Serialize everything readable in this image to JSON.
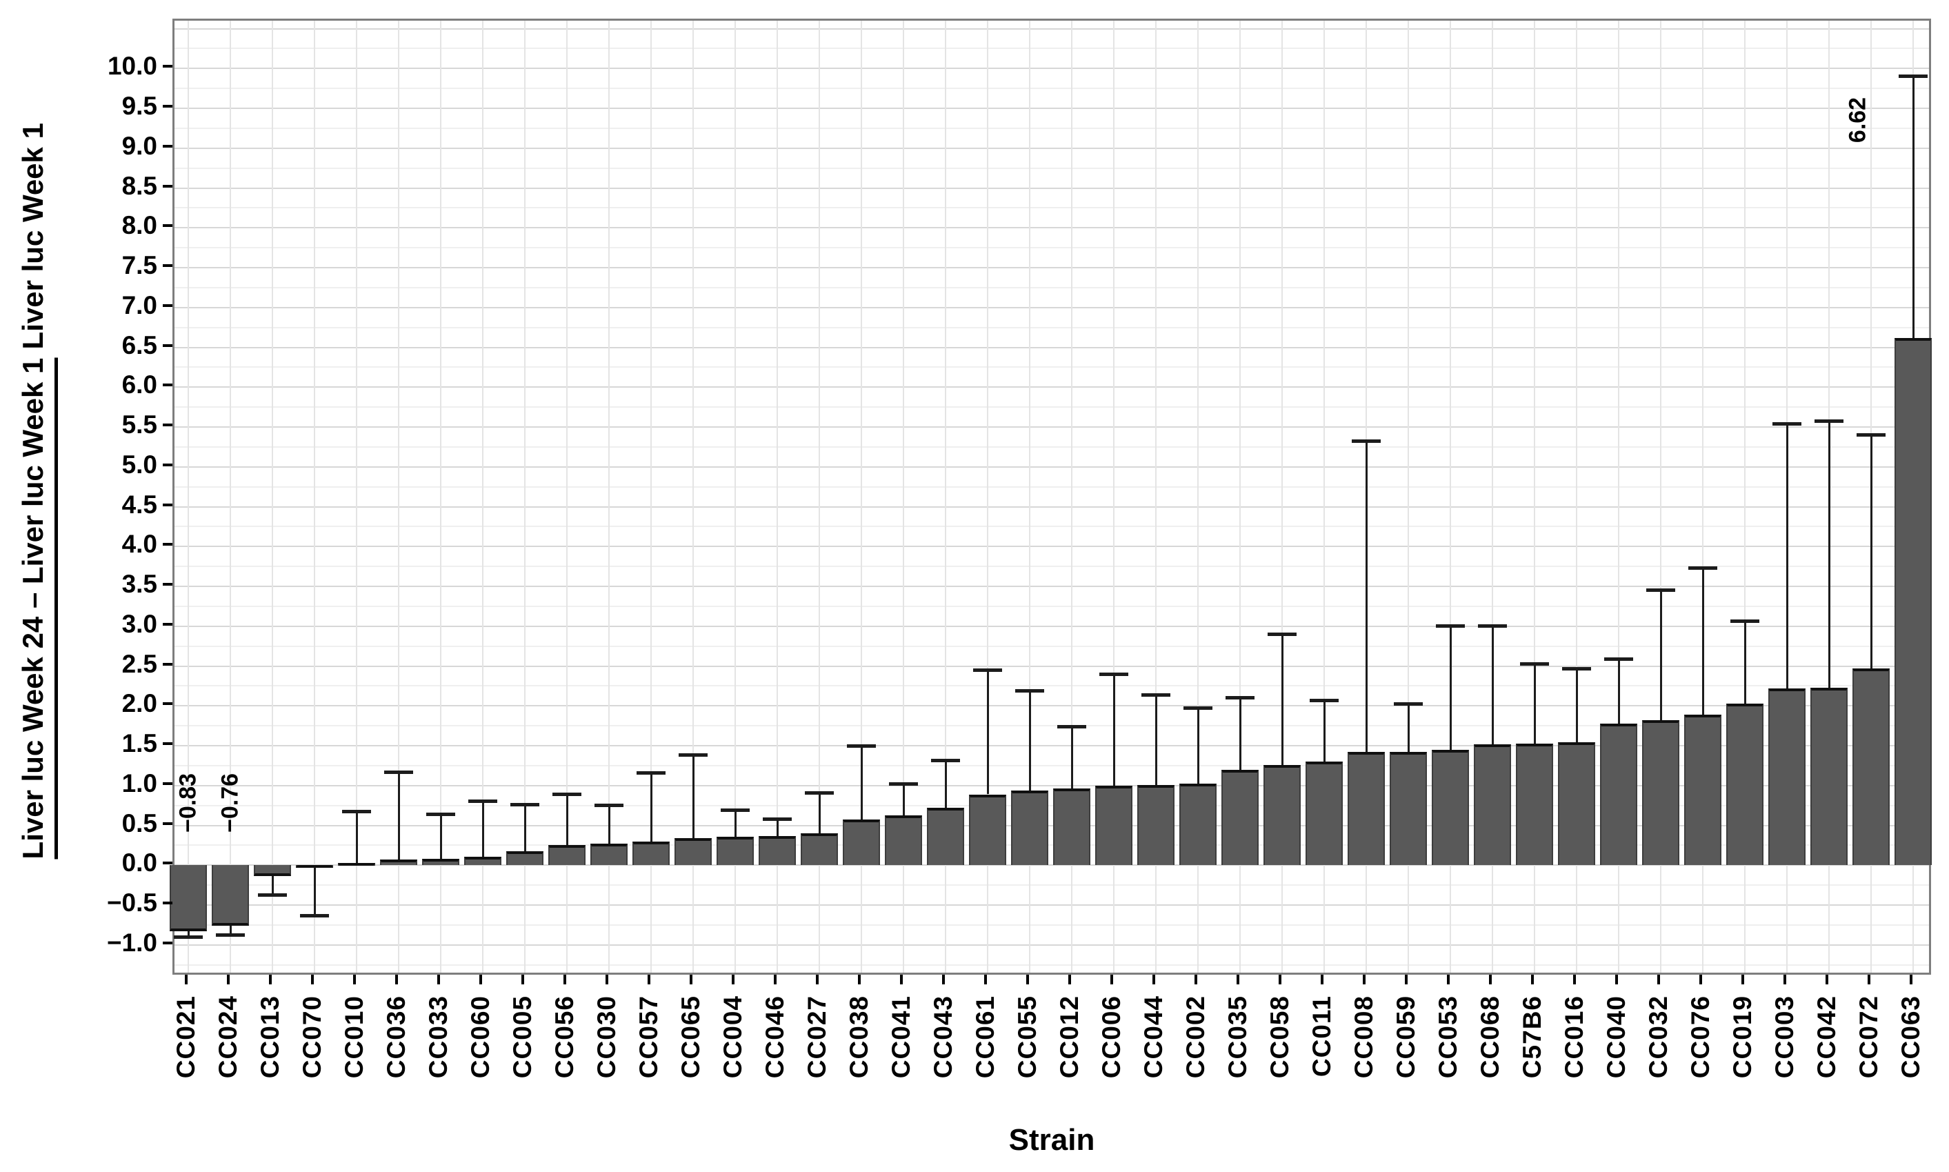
{
  "chart_data": {
    "type": "bar",
    "title": "",
    "xlabel": "Strain",
    "ylabel_numerator": "Liver luc Week 24 – Liver luc Week 1",
    "ylabel_denominator": "Liver luc Week 1",
    "ylim": [
      -1.4,
      10.6
    ],
    "grid": true,
    "legend": "none",
    "bar_color": "#595959",
    "ytick_labels": [
      "10.0",
      "9.5",
      "9.0",
      "8.5",
      "8.0",
      "7.5",
      "7.0",
      "6.5",
      "6.0",
      "5.5",
      "5.0",
      "4.5",
      "4.0",
      "3.5",
      "3.0",
      "2.5",
      "2.0",
      "1.5",
      "1.0",
      "0.5",
      "0.0",
      "−0.5",
      "−1.0"
    ],
    "ytick_values": [
      10.0,
      9.5,
      9.0,
      8.5,
      8.0,
      7.5,
      7.0,
      6.5,
      6.0,
      5.5,
      5.0,
      4.5,
      4.0,
      3.5,
      3.0,
      2.5,
      2.0,
      1.5,
      1.0,
      0.5,
      0.0,
      -0.5,
      -1.0
    ],
    "categories": [
      "CC021",
      "CC024",
      "CC013",
      "CC070",
      "CC010",
      "CC036",
      "CC033",
      "CC060",
      "CC005",
      "CC056",
      "CC030",
      "CC057",
      "CC065",
      "CC004",
      "CC046",
      "CC027",
      "CC038",
      "CC041",
      "CC043",
      "CC061",
      "CC055",
      "CC012",
      "CC006",
      "CC044",
      "CC002",
      "CC035",
      "CC058",
      "CC011",
      "CC008",
      "CC059",
      "CC053",
      "CC068",
      "C57B6",
      "CC016",
      "CC040",
      "CC032",
      "CC076",
      "CC019",
      "CC003",
      "CC042",
      "CC072",
      "CC063"
    ],
    "values": [
      -0.83,
      -0.76,
      -0.14,
      -0.02,
      0.03,
      0.07,
      0.08,
      0.11,
      0.18,
      0.25,
      0.27,
      0.3,
      0.34,
      0.36,
      0.37,
      0.4,
      0.57,
      0.63,
      0.72,
      0.89,
      0.94,
      0.96,
      1.0,
      1.01,
      1.02,
      1.2,
      1.26,
      1.3,
      1.42,
      1.42,
      1.45,
      1.52,
      1.53,
      1.54,
      1.78,
      1.82,
      1.89,
      2.03,
      2.22,
      2.23,
      2.47,
      6.62
    ],
    "error_top": [
      -0.9,
      -0.88,
      -0.37,
      -0.63,
      0.67,
      1.17,
      0.64,
      0.8,
      0.76,
      0.89,
      0.75,
      1.16,
      1.38,
      0.69,
      0.58,
      0.91,
      1.5,
      1.02,
      1.31,
      2.45,
      2.19,
      1.74,
      2.4,
      2.14,
      1.97,
      2.1,
      2.9,
      2.07,
      5.32,
      2.02,
      3.0,
      3.0,
      2.53,
      2.47,
      2.59,
      3.45,
      3.73,
      3.06,
      5.54,
      5.57,
      5.4,
      9.9
    ],
    "annotations": [
      {
        "text": "−0.83",
        "index": 0,
        "v_center": 0.78,
        "dx": 0
      },
      {
        "text": "−0.76",
        "index": 1,
        "v_center": 0.78,
        "dx": 0
      },
      {
        "text": "6.62",
        "index": 41,
        "v_center": 9.35,
        "dx": -80
      }
    ]
  }
}
